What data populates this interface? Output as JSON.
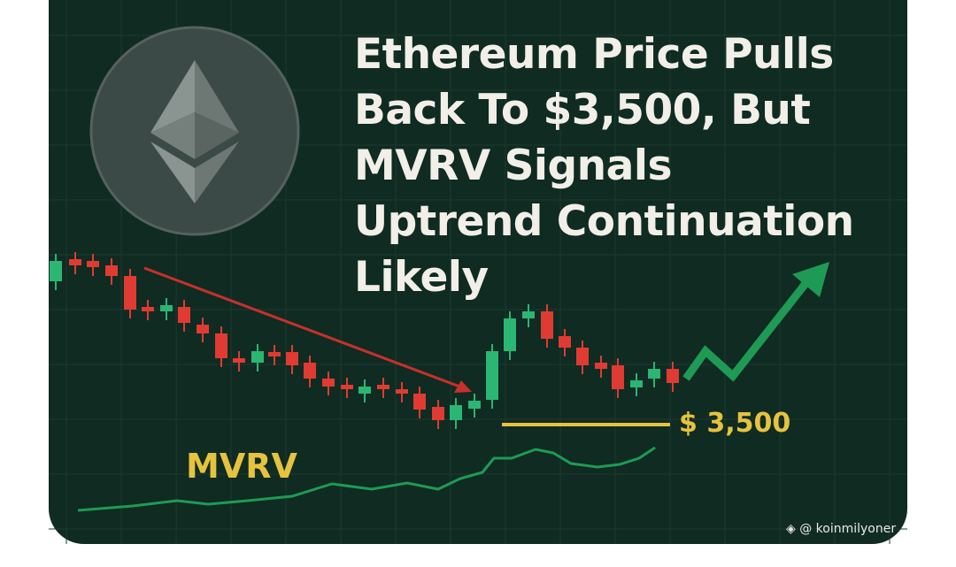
{
  "title": "Ethereum Price Pulls Back To $3,500, But MVRV Signals Uptrend Continuation Likely",
  "price_label": "$ 3,500",
  "indicator_label": "MVRV",
  "watermark": "@ koinmilyoner"
}
